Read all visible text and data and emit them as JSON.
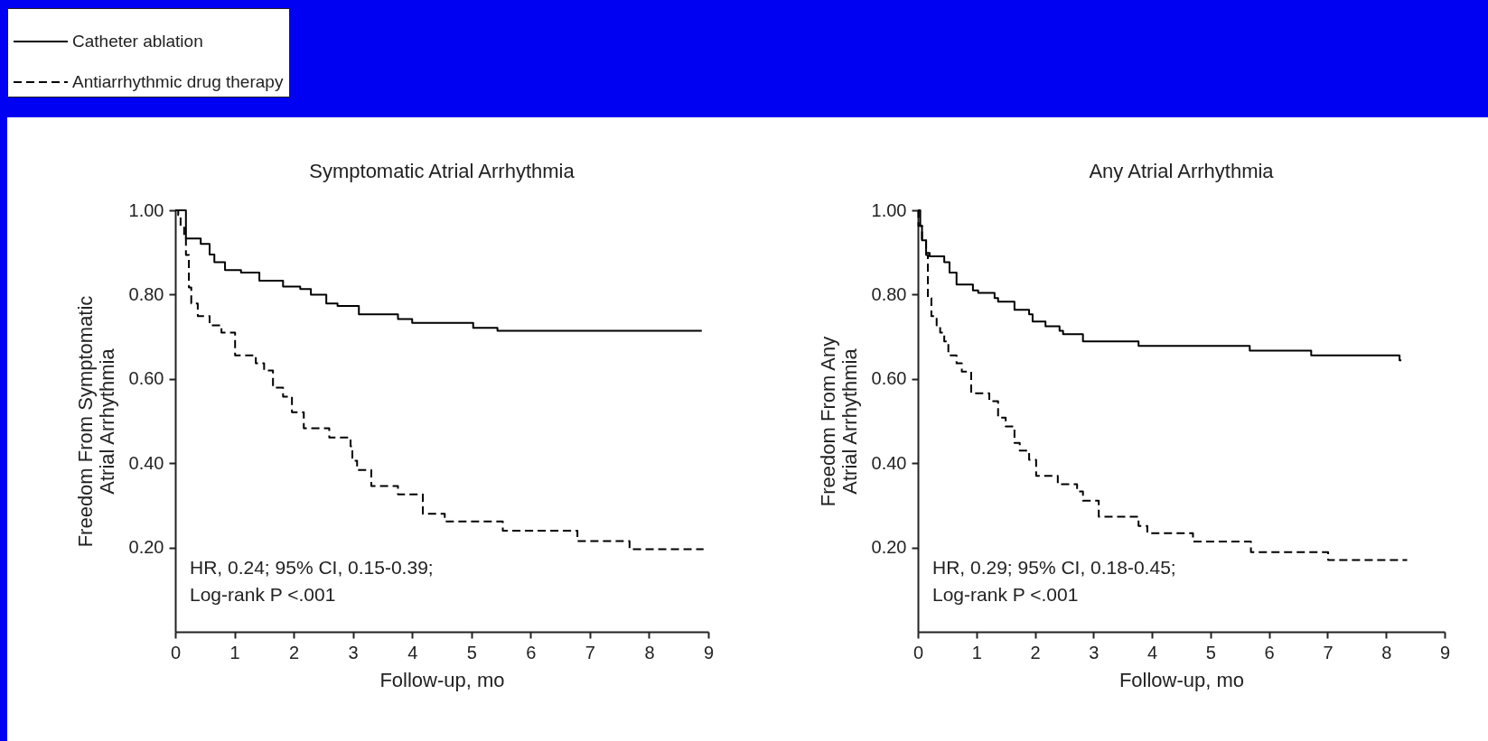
{
  "chart_data": [
    {
      "type": "step",
      "title": "Symptomatic Atrial Arrhythmia",
      "xlabel": "Follow-up, mo",
      "ylabel": "Freedom From Symptomatic\nAtrial Arrhythmia",
      "xlim": [
        0,
        9
      ],
      "ylim": [
        0,
        1
      ],
      "xticks": [
        0,
        1,
        2,
        3,
        4,
        5,
        6,
        7,
        8,
        9
      ],
      "yticks": [
        {
          "value": 0.2,
          "label": "0.20"
        },
        {
          "value": 0.4,
          "label": "0.40"
        },
        {
          "value": 0.6,
          "label": "0.60"
        },
        {
          "value": 0.8,
          "label": "0.80"
        },
        {
          "value": 1,
          "label": "1.00"
        }
      ],
      "legend": "top left",
      "grid": false,
      "series": [
        {
          "name": "Catheter ablation",
          "color": "#000000",
          "line_style": "solid",
          "x": [
            0,
            0.18,
            0.43,
            0.58,
            0.66,
            0.84,
            1.11,
            1.42,
            1.82,
            2.11,
            2.29,
            2.55,
            2.74,
            3.1,
            3.76,
            4.0,
            5.03,
            5.44,
            8.89
          ],
          "values": [
            1.0,
            0.933,
            0.92,
            0.895,
            0.877,
            0.858,
            0.852,
            0.833,
            0.819,
            0.813,
            0.8,
            0.779,
            0.773,
            0.753,
            0.742,
            0.733,
            0.721,
            0.714,
            0.714
          ]
        },
        {
          "name": "Antiarrhythmic drug therapy",
          "color": "#000000",
          "line_style": "dashed",
          "x": [
            0,
            0.05,
            0.09,
            0.15,
            0.18,
            0.23,
            0.27,
            0.38,
            0.58,
            0.78,
            1.01,
            1.36,
            1.5,
            1.65,
            1.82,
            1.97,
            2.17,
            2.6,
            2.96,
            2.99,
            3.07,
            3.31,
            3.76,
            4.18,
            4.55,
            5.53,
            6.79,
            7.67,
            8.92
          ],
          "values": [
            1.0,
            0.989,
            0.963,
            0.937,
            0.894,
            0.817,
            0.779,
            0.749,
            0.727,
            0.71,
            0.656,
            0.637,
            0.62,
            0.579,
            0.558,
            0.521,
            0.483,
            0.461,
            0.44,
            0.406,
            0.384,
            0.346,
            0.326,
            0.28,
            0.262,
            0.24,
            0.215,
            0.196,
            0.196
          ]
        }
      ],
      "annotations": [
        "HR, 0.24; 95% CI, 0.15-0.39;",
        "Log-rank P <.001"
      ]
    },
    {
      "type": "step",
      "title": "Any Atrial Arrhythmia",
      "xlabel": "Follow-up, mo",
      "ylabel": "Freedom From Any\nAtrial Arrhythmia",
      "xlim": [
        0,
        9
      ],
      "ylim": [
        0,
        1
      ],
      "xticks": [
        0,
        1,
        2,
        3,
        4,
        5,
        6,
        7,
        8,
        9
      ],
      "yticks": [
        {
          "value": 0.2,
          "label": "0.20"
        },
        {
          "value": 0.4,
          "label": "0.40"
        },
        {
          "value": 0.6,
          "label": "0.60"
        },
        {
          "value": 0.8,
          "label": "0.80"
        },
        {
          "value": 1,
          "label": "1.00"
        }
      ],
      "grid": false,
      "series": [
        {
          "color": "#000000",
          "line_style": "solid",
          "x": [
            0,
            0.04,
            0.07,
            0.14,
            0.2,
            0.45,
            0.54,
            0.66,
            0.94,
            1.03,
            1.31,
            1.37,
            1.65,
            1.9,
            1.96,
            2.18,
            2.42,
            2.48,
            2.82,
            3.77,
            5.67,
            6.72,
            8.23,
            8.26
          ],
          "values": [
            1.0,
            0.963,
            0.929,
            0.899,
            0.891,
            0.877,
            0.852,
            0.824,
            0.81,
            0.804,
            0.792,
            0.783,
            0.764,
            0.753,
            0.736,
            0.725,
            0.714,
            0.706,
            0.689,
            0.678,
            0.667,
            0.656,
            0.644,
            0.644
          ]
        },
        {
          "color": "#000000",
          "line_style": "dashed",
          "x": [
            0,
            0.01,
            0.07,
            0.14,
            0.17,
            0.23,
            0.32,
            0.38,
            0.45,
            0.52,
            0.66,
            0.75,
            0.91,
            1.22,
            1.37,
            1.5,
            1.65,
            1.74,
            1.9,
            2.02,
            2.39,
            2.72,
            2.82,
            3.09,
            3.77,
            3.92,
            4.7,
            5.69,
            7.01,
            8.36
          ],
          "values": [
            1.0,
            0.963,
            0.929,
            0.894,
            0.792,
            0.749,
            0.727,
            0.71,
            0.689,
            0.656,
            0.637,
            0.617,
            0.566,
            0.547,
            0.508,
            0.487,
            0.448,
            0.43,
            0.408,
            0.37,
            0.35,
            0.333,
            0.311,
            0.273,
            0.251,
            0.234,
            0.214,
            0.189,
            0.17,
            0.17
          ]
        }
      ],
      "annotations": [
        "HR, 0.29; 95% CI, 0.18-0.45;",
        "Log-rank P <.001"
      ]
    }
  ]
}
